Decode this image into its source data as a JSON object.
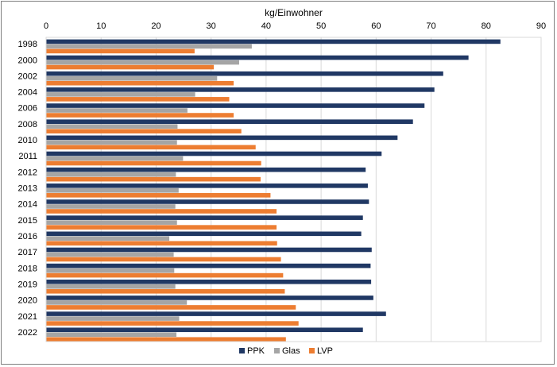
{
  "chart_data": {
    "type": "bar",
    "orientation": "horizontal",
    "title": "",
    "xlabel": "kg/Einwohner",
    "ylabel": "",
    "xlim": [
      0,
      90
    ],
    "x_ticks": [
      0,
      10,
      20,
      30,
      40,
      50,
      60,
      70,
      80,
      90
    ],
    "x_axis_position": "top",
    "grid": true,
    "legend_position": "bottom",
    "categories": [
      "1998",
      "2000",
      "2002",
      "2004",
      "2006",
      "2008",
      "2010",
      "2011",
      "2012",
      "2013",
      "2014",
      "2015",
      "2016",
      "2017",
      "2018",
      "2019",
      "2020",
      "2021",
      "2022"
    ],
    "series": [
      {
        "name": "PPK",
        "color": "#203864",
        "values": [
          82.6,
          76.8,
          72.2,
          70.6,
          68.8,
          66.7,
          63.9,
          61.0,
          58.1,
          58.5,
          58.7,
          57.6,
          57.3,
          59.2,
          59.0,
          59.1,
          59.5,
          61.8,
          57.6
        ]
      },
      {
        "name": "Glas",
        "color": "#a5a5a5",
        "values": [
          37.4,
          35.1,
          31.1,
          27.1,
          25.7,
          23.9,
          23.8,
          24.9,
          23.6,
          24.1,
          23.5,
          23.8,
          22.4,
          23.2,
          23.3,
          23.5,
          25.6,
          24.2,
          23.7
        ]
      },
      {
        "name": "LVP",
        "color": "#ed7d31",
        "values": [
          27.0,
          30.5,
          34.1,
          33.3,
          34.1,
          35.5,
          38.1,
          39.1,
          39.0,
          40.8,
          41.9,
          41.9,
          42.0,
          42.7,
          43.1,
          43.4,
          45.4,
          45.9,
          43.6
        ]
      }
    ]
  }
}
